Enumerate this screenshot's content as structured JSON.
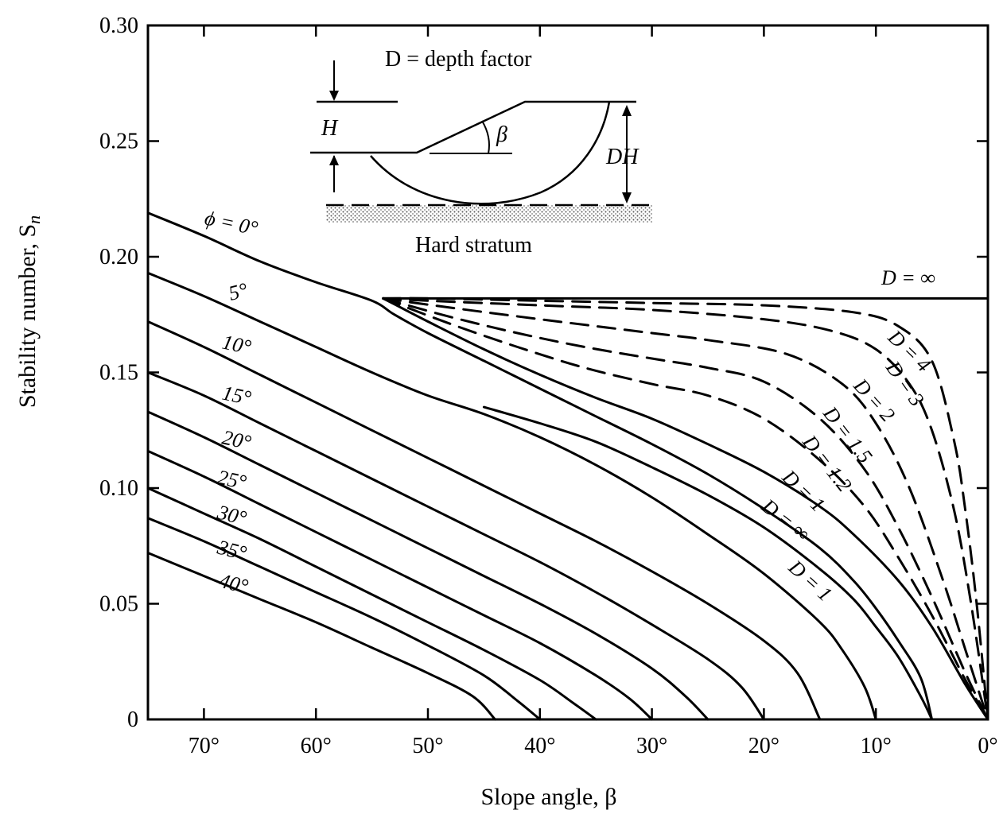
{
  "chart_data": {
    "type": "line",
    "xlabel": "Slope angle, β",
    "ylabel": "Stability number, S",
    "ylabel_subscript": "n",
    "x_reversed": true,
    "xlim": [
      0,
      75
    ],
    "ylim": [
      0,
      0.3
    ],
    "x_ticks": [
      70,
      60,
      50,
      40,
      30,
      20,
      10,
      0
    ],
    "x_tick_labels": [
      "70°",
      "60°",
      "50°",
      "40°",
      "30°",
      "20°",
      "10°",
      "0°"
    ],
    "y_ticks": [
      0,
      0.05,
      0.1,
      0.15,
      0.2,
      0.25,
      0.3
    ],
    "y_tick_labels": [
      "0",
      "0.05",
      "0.10",
      "0.15",
      "0.20",
      "0.25",
      "0.30"
    ],
    "series": [
      {
        "label": "ϕ = 0°",
        "style": "solid",
        "points": [
          [
            75,
            0.219
          ],
          [
            70,
            0.209
          ],
          [
            65,
            0.198
          ],
          [
            60,
            0.189
          ],
          [
            55,
            0.181
          ],
          [
            53,
            0.175
          ],
          [
            50,
            0.167
          ],
          [
            45,
            0.155
          ],
          [
            40,
            0.143
          ],
          [
            35,
            0.131
          ],
          [
            30,
            0.119
          ],
          [
            25,
            0.106
          ],
          [
            20,
            0.091
          ],
          [
            15,
            0.074
          ],
          [
            12,
            0.06
          ],
          [
            10,
            0.048
          ],
          [
            8,
            0.034
          ],
          [
            6,
            0.018
          ],
          [
            5,
            0.0
          ]
        ]
      },
      {
        "label": "D = ∞",
        "style": "solid",
        "points": [
          [
            54,
            0.182
          ],
          [
            0,
            0.182
          ]
        ]
      },
      {
        "label": "D = 4",
        "style": "dashed",
        "points": [
          [
            54,
            0.182
          ],
          [
            50,
            0.182
          ],
          [
            40,
            0.181
          ],
          [
            30,
            0.18
          ],
          [
            20,
            0.179
          ],
          [
            12,
            0.176
          ],
          [
            8,
            0.17
          ],
          [
            5,
            0.155
          ],
          [
            3,
            0.12
          ],
          [
            2,
            0.09
          ],
          [
            1,
            0.05
          ],
          [
            0,
            0.0
          ]
        ]
      },
      {
        "label": "D = 3",
        "style": "dashed",
        "points": [
          [
            54,
            0.182
          ],
          [
            50,
            0.181
          ],
          [
            40,
            0.179
          ],
          [
            30,
            0.177
          ],
          [
            20,
            0.173
          ],
          [
            14,
            0.168
          ],
          [
            10,
            0.16
          ],
          [
            7,
            0.145
          ],
          [
            5,
            0.125
          ],
          [
            3,
            0.09
          ],
          [
            1.5,
            0.05
          ],
          [
            0,
            0.0
          ]
        ]
      },
      {
        "label": "D = 2",
        "style": "dashed",
        "points": [
          [
            54,
            0.182
          ],
          [
            48,
            0.178
          ],
          [
            40,
            0.173
          ],
          [
            30,
            0.167
          ],
          [
            25,
            0.164
          ],
          [
            18,
            0.158
          ],
          [
            13,
            0.145
          ],
          [
            10,
            0.128
          ],
          [
            7,
            0.1
          ],
          [
            4,
            0.06
          ],
          [
            2,
            0.03
          ],
          [
            0,
            0.0
          ]
        ]
      },
      {
        "label": "D = 1.5",
        "style": "dashed",
        "points": [
          [
            54,
            0.182
          ],
          [
            48,
            0.174
          ],
          [
            42,
            0.167
          ],
          [
            36,
            0.161
          ],
          [
            30,
            0.156
          ],
          [
            25,
            0.152
          ],
          [
            20,
            0.146
          ],
          [
            15,
            0.13
          ],
          [
            11,
            0.108
          ],
          [
            8,
            0.083
          ],
          [
            5,
            0.053
          ],
          [
            2,
            0.02
          ],
          [
            0,
            0.0
          ]
        ]
      },
      {
        "label": "D = 1.2",
        "style": "dashed",
        "points": [
          [
            54,
            0.182
          ],
          [
            48,
            0.171
          ],
          [
            42,
            0.161
          ],
          [
            36,
            0.152
          ],
          [
            30,
            0.145
          ],
          [
            25,
            0.14
          ],
          [
            20,
            0.13
          ],
          [
            15,
            0.112
          ],
          [
            11,
            0.092
          ],
          [
            8,
            0.07
          ],
          [
            5,
            0.045
          ],
          [
            2,
            0.017
          ],
          [
            0,
            0.0
          ]
        ]
      },
      {
        "label": "D = 1",
        "style": "solid",
        "points": [
          [
            54,
            0.182
          ],
          [
            50,
            0.172
          ],
          [
            45,
            0.16
          ],
          [
            40,
            0.149
          ],
          [
            35,
            0.139
          ],
          [
            30,
            0.13
          ],
          [
            25,
            0.119
          ],
          [
            20,
            0.107
          ],
          [
            15,
            0.092
          ],
          [
            12,
            0.08
          ],
          [
            8,
            0.06
          ],
          [
            5,
            0.04
          ],
          [
            2,
            0.015
          ],
          [
            0,
            0.0
          ]
        ]
      },
      {
        "label": "D = 1",
        "style": "solid",
        "points": [
          [
            45,
            0.135
          ],
          [
            40,
            0.128
          ],
          [
            35,
            0.12
          ],
          [
            30,
            0.109
          ],
          [
            25,
            0.097
          ],
          [
            20,
            0.083
          ],
          [
            15,
            0.065
          ],
          [
            12,
            0.052
          ],
          [
            10,
            0.04
          ],
          [
            8,
            0.027
          ],
          [
            6,
            0.01
          ],
          [
            5,
            0.0
          ]
        ]
      },
      {
        "label": "5°",
        "style": "solid",
        "points": [
          [
            75,
            0.193
          ],
          [
            70,
            0.183
          ],
          [
            65,
            0.172
          ],
          [
            60,
            0.161
          ],
          [
            55,
            0.15
          ],
          [
            50,
            0.14
          ],
          [
            45,
            0.132
          ],
          [
            40,
            0.122
          ],
          [
            35,
            0.11
          ],
          [
            30,
            0.096
          ],
          [
            25,
            0.08
          ],
          [
            20,
            0.063
          ],
          [
            15,
            0.042
          ],
          [
            13,
            0.03
          ],
          [
            11,
            0.014
          ],
          [
            10,
            0.0
          ]
        ]
      },
      {
        "label": "10°",
        "style": "solid",
        "points": [
          [
            75,
            0.172
          ],
          [
            70,
            0.161
          ],
          [
            65,
            0.149
          ],
          [
            60,
            0.137
          ],
          [
            55,
            0.125
          ],
          [
            50,
            0.113
          ],
          [
            45,
            0.101
          ],
          [
            40,
            0.089
          ],
          [
            35,
            0.077
          ],
          [
            30,
            0.064
          ],
          [
            25,
            0.05
          ],
          [
            20,
            0.034
          ],
          [
            17,
            0.02
          ],
          [
            15,
            0.0
          ]
        ]
      },
      {
        "label": "15°",
        "style": "solid",
        "points": [
          [
            75,
            0.15
          ],
          [
            70,
            0.14
          ],
          [
            65,
            0.128
          ],
          [
            60,
            0.116
          ],
          [
            55,
            0.104
          ],
          [
            50,
            0.092
          ],
          [
            45,
            0.08
          ],
          [
            40,
            0.068
          ],
          [
            35,
            0.055
          ],
          [
            30,
            0.041
          ],
          [
            25,
            0.026
          ],
          [
            22,
            0.014
          ],
          [
            20,
            0.0
          ]
        ]
      },
      {
        "label": "20°",
        "style": "solid",
        "points": [
          [
            75,
            0.133
          ],
          [
            70,
            0.122
          ],
          [
            65,
            0.11
          ],
          [
            60,
            0.098
          ],
          [
            55,
            0.086
          ],
          [
            50,
            0.074
          ],
          [
            45,
            0.062
          ],
          [
            40,
            0.05
          ],
          [
            35,
            0.037
          ],
          [
            30,
            0.022
          ],
          [
            27,
            0.01
          ],
          [
            25,
            0.0
          ]
        ]
      },
      {
        "label": "25°",
        "style": "solid",
        "points": [
          [
            75,
            0.116
          ],
          [
            70,
            0.105
          ],
          [
            65,
            0.093
          ],
          [
            60,
            0.081
          ],
          [
            55,
            0.069
          ],
          [
            50,
            0.057
          ],
          [
            45,
            0.045
          ],
          [
            40,
            0.033
          ],
          [
            35,
            0.019
          ],
          [
            32,
            0.009
          ],
          [
            30,
            0.0
          ]
        ]
      },
      {
        "label": "30°",
        "style": "solid",
        "points": [
          [
            75,
            0.1
          ],
          [
            70,
            0.089
          ],
          [
            65,
            0.078
          ],
          [
            60,
            0.066
          ],
          [
            55,
            0.054
          ],
          [
            50,
            0.042
          ],
          [
            45,
            0.03
          ],
          [
            40,
            0.017
          ],
          [
            37,
            0.007
          ],
          [
            35,
            0.0
          ]
        ]
      },
      {
        "label": "35°",
        "style": "solid",
        "points": [
          [
            75,
            0.087
          ],
          [
            70,
            0.077
          ],
          [
            65,
            0.066
          ],
          [
            60,
            0.055
          ],
          [
            55,
            0.044
          ],
          [
            50,
            0.032
          ],
          [
            45,
            0.019
          ],
          [
            42,
            0.008
          ],
          [
            40,
            0.0
          ]
        ]
      },
      {
        "label": "40°",
        "style": "solid",
        "points": [
          [
            75,
            0.072
          ],
          [
            70,
            0.062
          ],
          [
            65,
            0.052
          ],
          [
            60,
            0.042
          ],
          [
            55,
            0.031
          ],
          [
            50,
            0.02
          ],
          [
            46,
            0.01
          ],
          [
            44,
            0.0
          ]
        ]
      }
    ],
    "curve_labels": [
      "5°",
      "10°",
      "15°",
      "20°",
      "25°",
      "30°",
      "35°",
      "40°"
    ],
    "phi_label": "ϕ = 0°",
    "d_labels": [
      "D = ∞",
      "D = 4",
      "D = 3",
      "D = 2",
      "D = 1.5",
      "D = 1.2",
      "D = 1",
      "D = ∞",
      "D = 1"
    ],
    "grid": false,
    "legend": "none"
  },
  "inset": {
    "title": "D = depth factor",
    "h_label": "H",
    "beta_label": "β",
    "dh_label": "DH",
    "stratum_label": "Hard stratum"
  }
}
